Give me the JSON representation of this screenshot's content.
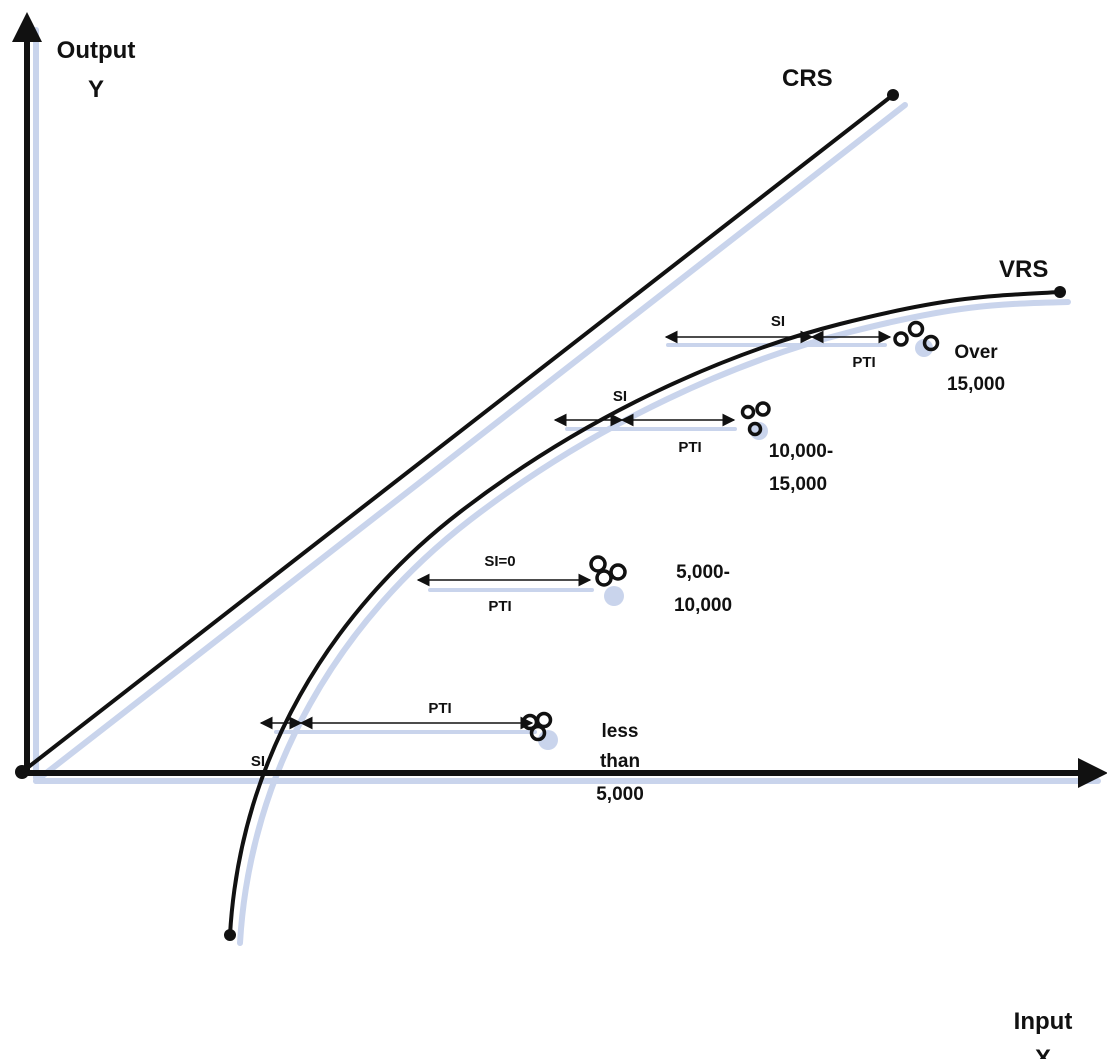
{
  "axes": {
    "y_label_line1": "Output",
    "y_label_line2": "Y",
    "x_label_line1": "Input",
    "x_label_line2": "X"
  },
  "curves": {
    "crs_label": "CRS",
    "vrs_label": "VRS"
  },
  "gaps": {
    "less_than_5000": {
      "pti": "PTI",
      "si": "SI"
    },
    "5000_10000": {
      "si": "SI=0",
      "pti": "PTI"
    },
    "10000_15000": {
      "si": "SI",
      "pti": "PTI"
    },
    "over_15000": {
      "si": "SI",
      "pti": "PTI"
    }
  },
  "groups": {
    "less_than_5000": [
      "less",
      "than",
      "5,000"
    ],
    "5000_10000": [
      "5,000-",
      "10,000"
    ],
    "10000_15000": [
      "10,000-",
      "15,000"
    ],
    "over_15000": [
      "Over",
      "15,000"
    ]
  },
  "colors": {
    "ink": "#111111",
    "shadow": "#c9d4ec"
  }
}
